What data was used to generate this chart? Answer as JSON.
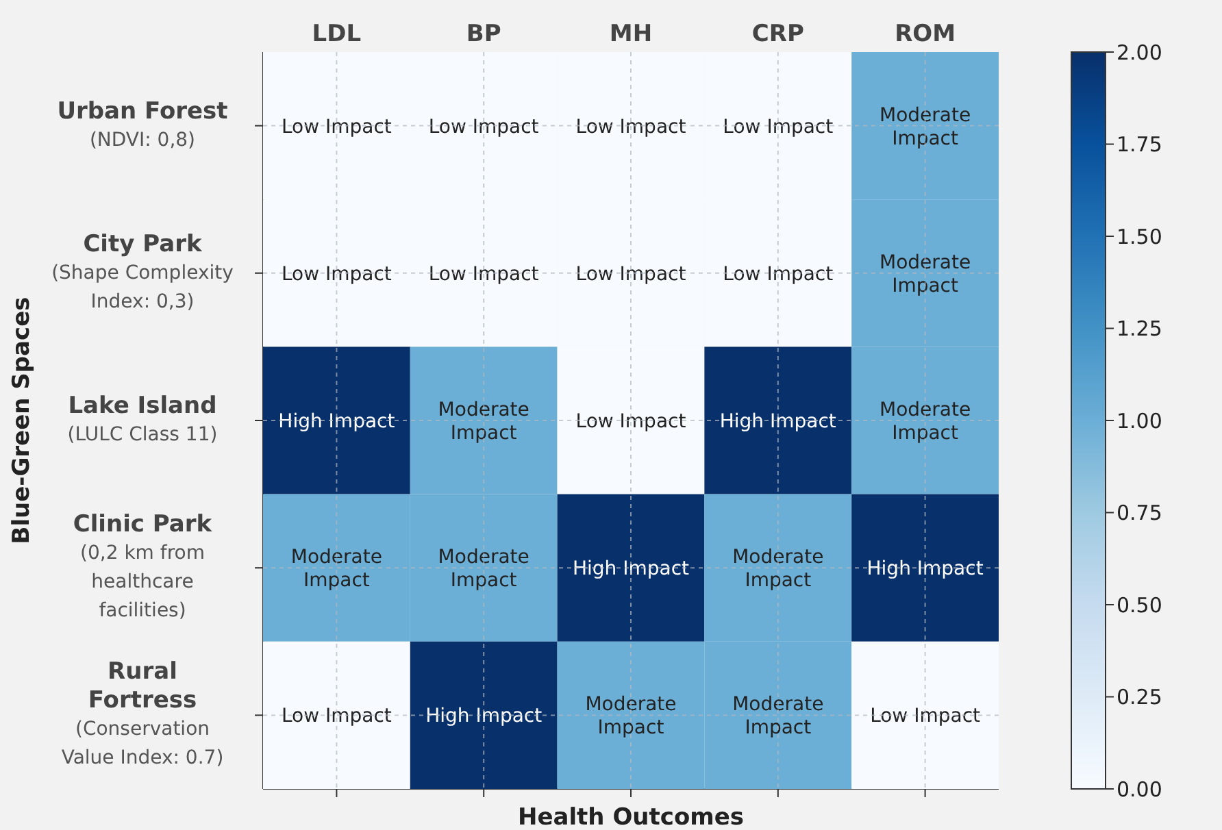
{
  "chart_data": {
    "type": "heatmap",
    "xlabel": "Health Outcomes",
    "ylabel": "Blue-Green Spaces",
    "categories": [
      "LDL",
      "BP",
      "MH",
      "CRP",
      "ROM"
    ],
    "y_categories": [
      "Urban Forest",
      "City Park",
      "Lake Island",
      "Clinic Park",
      "Rural Fortress"
    ],
    "cells": [
      [
        0,
        0,
        0,
        0,
        1
      ],
      [
        0,
        0,
        0,
        0,
        1
      ],
      [
        2,
        1,
        0,
        2,
        1
      ],
      [
        1,
        1,
        2,
        1,
        2
      ],
      [
        0,
        2,
        1,
        1,
        0
      ]
    ],
    "cell_labels": [
      [
        "Low Impact",
        "Low Impact",
        "Low Impact",
        "Low Impact",
        "Moderate Impact"
      ],
      [
        "Low Impact",
        "Low Impact",
        "Low Impact",
        "Low Impact",
        "Moderate Impact"
      ],
      [
        "High Impact",
        "Moderate Impact",
        "Low Impact",
        "High Impact",
        "Moderate Impact"
      ],
      [
        "Moderate Impact",
        "Moderate Impact",
        "High Impact",
        "Moderate Impact",
        "High Impact"
      ],
      [
        "Low Impact",
        "High Impact",
        "Moderate Impact",
        "Moderate Impact",
        "Low Impact"
      ]
    ],
    "clim": [
      0,
      2
    ],
    "cticks": [
      {
        "value": 0,
        "label": "0.00"
      },
      {
        "value": 0.25,
        "label": "0.25"
      },
      {
        "value": 0.5,
        "label": "0.50"
      },
      {
        "value": 0.75,
        "label": "0.75"
      },
      {
        "value": 1,
        "label": "1.00"
      },
      {
        "value": 1.25,
        "label": "1.25"
      },
      {
        "value": 1.5,
        "label": "1.50"
      },
      {
        "value": 1.75,
        "label": "1.75"
      },
      {
        "value": 2,
        "label": "2.00"
      }
    ],
    "grid": true,
    "annotations": [
      "(NDVI: 0,8)",
      "(Shape Complexity Index: 0,3)",
      "(LULC Class 11)",
      "(0,2 km from healthcare facilities)",
      "(Conservation Value Index: 0.7)"
    ]
  }
}
